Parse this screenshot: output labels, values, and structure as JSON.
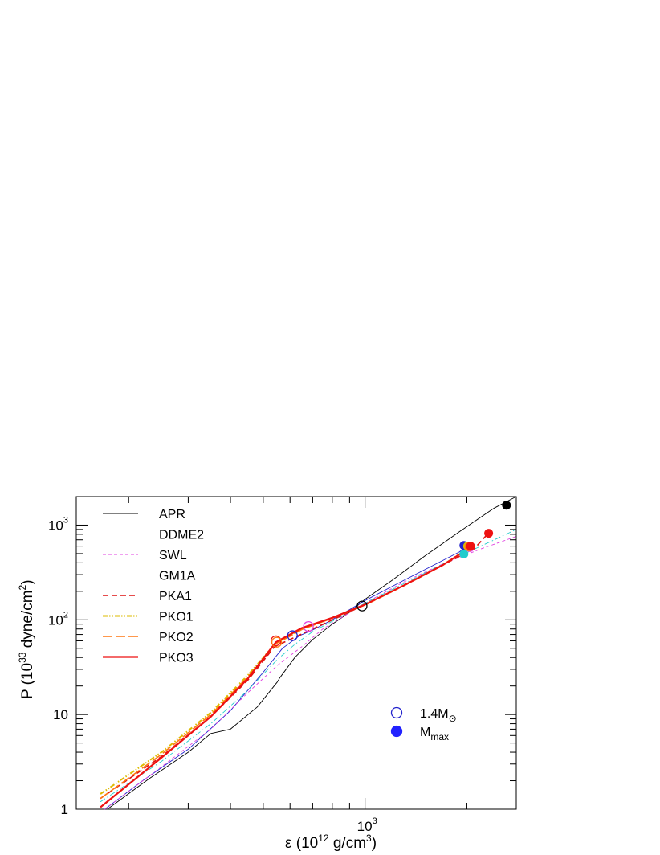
{
  "chart_data": {
    "type": "line",
    "xlabel": {
      "prefix": "ε (10",
      "exp": "12",
      "mid": " g/cm",
      "exp2": "3",
      "suffix": ")"
    },
    "ylabel": {
      "prefix": "P (10",
      "exp": "33",
      "mid": " dyne/cm",
      "exp2": "2",
      "suffix": ")"
    },
    "x_scale": "log",
    "y_scale": "log",
    "xlim": [
      140,
      2800
    ],
    "ylim": [
      1,
      2000
    ],
    "x_ticks": [
      {
        "value": 1000,
        "base": "10",
        "exp": "3"
      }
    ],
    "y_ticks": [
      {
        "value": 1,
        "label": "1"
      },
      {
        "value": 10,
        "label": "10"
      },
      {
        "value": 100,
        "base": "10",
        "exp": "2"
      },
      {
        "value": 1000,
        "base": "10",
        "exp": "3"
      }
    ],
    "series": [
      {
        "name": "APR",
        "color": "#000000",
        "dash": "",
        "width": 0.9,
        "x": [
          173,
          230,
          300,
          350,
          400,
          480,
          550,
          560,
          620,
          700,
          800,
          900,
          1000,
          1200,
          1500,
          1900,
          2400,
          2800
        ],
        "y": [
          1.0,
          2.1,
          4.0,
          6.3,
          7.0,
          12.0,
          22.0,
          24.5,
          40,
          62,
          90,
          120,
          165,
          260,
          470,
          850,
          1500,
          2000
        ]
      },
      {
        "name": "DDME2",
        "color": "#2222cc",
        "dash": "",
        "width": 0.9,
        "x": [
          170,
          220,
          300,
          400,
          500,
          570,
          640,
          700,
          800,
          1000,
          1300,
          1600,
          1900,
          2000
        ],
        "y": [
          1.0,
          2.0,
          4.3,
          11.0,
          28.0,
          50,
          68,
          78,
          100,
          160,
          260,
          380,
          520,
          600
        ]
      },
      {
        "name": "SWL",
        "color": "#e040e0",
        "dash": "4,3",
        "width": 0.9,
        "x": [
          170,
          250,
          350,
          450,
          550,
          650,
          750,
          850,
          1000,
          1300,
          1700,
          2200,
          2800
        ],
        "y": [
          1.0,
          2.8,
          7.0,
          17.0,
          33.0,
          52,
          80,
          105,
          150,
          250,
          390,
          560,
          760
        ]
      },
      {
        "name": "GM1A",
        "color": "#22cccc",
        "dash": "7,3,1.5,3",
        "width": 0.9,
        "x": [
          165,
          250,
          350,
          450,
          550,
          620,
          700,
          850,
          1000,
          1300,
          1700,
          2200,
          2800
        ],
        "y": [
          1.2,
          3.2,
          8.0,
          18.0,
          38.0,
          55,
          75,
          108,
          150,
          240,
          390,
          600,
          900
        ]
      },
      {
        "name": "PKA1",
        "color": "#dd1111",
        "dash": "7,4",
        "width": 1.6,
        "x": [
          165,
          250,
          350,
          450,
          540,
          600,
          700,
          850,
          1000,
          1300,
          1700,
          2100,
          2300
        ],
        "y": [
          1.3,
          3.6,
          9.5,
          23.0,
          52,
          62,
          80,
          110,
          145,
          230,
          380,
          560,
          800
        ]
      },
      {
        "name": "PKO1",
        "color": "#ddbb00",
        "dash": "6,2,1.5,2,1.5,2",
        "width": 2.0,
        "x": [
          165,
          250,
          350,
          450,
          545,
          600,
          650,
          800,
          1000,
          1300,
          1700,
          2050
        ],
        "y": [
          1.45,
          4.0,
          10.5,
          26.0,
          57,
          68,
          80,
          105,
          145,
          230,
          380,
          590
        ]
      },
      {
        "name": "PKO2",
        "color": "#ff7711",
        "dash": "12,4",
        "width": 1.6,
        "x": [
          165,
          250,
          350,
          450,
          545,
          600,
          650,
          800,
          1000,
          1300,
          1700,
          2050
        ],
        "y": [
          1.3,
          3.8,
          10.0,
          25.0,
          56,
          67,
          79,
          104,
          143,
          228,
          378,
          580
        ]
      },
      {
        "name": "PKO3",
        "color": "#ee1111",
        "dash": "",
        "width": 2.2,
        "x": [
          165,
          250,
          350,
          450,
          545,
          600,
          650,
          800,
          1000,
          1300,
          1700,
          2080
        ],
        "y": [
          1.05,
          3.5,
          9.5,
          24.0,
          58,
          70,
          82,
          105,
          145,
          230,
          380,
          600
        ]
      }
    ],
    "markers_1_4": [
      {
        "x": 545,
        "y": 60,
        "color": "#ee1111"
      },
      {
        "x": 548,
        "y": 58,
        "color": "#ff7711"
      },
      {
        "x": 610,
        "y": 68,
        "color": "#2222cc"
      },
      {
        "x": 680,
        "y": 85,
        "color": "#e040e0"
      },
      {
        "x": 980,
        "y": 140,
        "color": "#000000"
      }
    ],
    "markers_max": [
      {
        "x": 2620,
        "y": 1620,
        "color": "#000000"
      },
      {
        "x": 2320,
        "y": 820,
        "color": "#ee1111"
      },
      {
        "x": 1960,
        "y": 610,
        "color": "#2222cc"
      },
      {
        "x": 2040,
        "y": 580,
        "color": "#e040e0"
      },
      {
        "x": 1960,
        "y": 495,
        "color": "#22cccc"
      },
      {
        "x": 2010,
        "y": 600,
        "color": "#ddbb00"
      },
      {
        "x": 2030,
        "y": 590,
        "color": "#ff7711"
      },
      {
        "x": 2050,
        "y": 600,
        "color": "#ee1111"
      }
    ],
    "marker_legend": [
      {
        "base": "1.4M",
        "sub": "⊙",
        "fill": false,
        "color": "#2222cc"
      },
      {
        "base": "M",
        "sub": "max",
        "fill": true,
        "color": "#2222ff"
      }
    ],
    "legend_position": "top-left",
    "grid": false
  }
}
